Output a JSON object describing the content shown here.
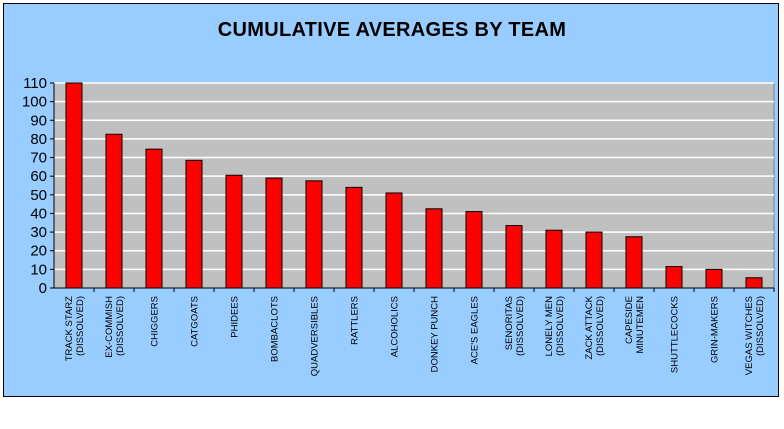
{
  "colors": {
    "background": "#99CCFF",
    "plot_area": "#C0C0C0",
    "bar": "#FF0000",
    "bar_outline": "#000000",
    "grid": "#FFFFFF"
  },
  "chart_data": {
    "type": "bar",
    "title": "CUMULATIVE AVERAGES BY TEAM",
    "xlabel": "",
    "ylabel": "",
    "ylim": [
      0,
      110
    ],
    "yticks": [
      0,
      10,
      20,
      30,
      40,
      50,
      60,
      70,
      80,
      90,
      100,
      110
    ],
    "grid": true,
    "legend": "none",
    "categories": [
      [
        "TRACK STARZ",
        "(DISSOLVED)"
      ],
      [
        "EX-COMMISH",
        "(DISSOLVED)"
      ],
      [
        "CHIGGERS"
      ],
      [
        "CATGOATS"
      ],
      [
        "PHIDEES"
      ],
      [
        "BOMBACLOTS"
      ],
      [
        "QUADVERSIBLES"
      ],
      [
        "RATTLERS"
      ],
      [
        "ALCOHOLICS"
      ],
      [
        "DONKEY PUNCH"
      ],
      [
        "ACE'S EAGLES"
      ],
      [
        "SENORITAS",
        "(DISSOLVED)"
      ],
      [
        "LONELY MEN",
        "(DISSOLVED)"
      ],
      [
        "ZACK ATTACK",
        "(DISSOLVED)"
      ],
      [
        "CAPESIDE",
        "MINUTEMEN"
      ],
      [
        "SHUTTLECOCKS"
      ],
      [
        "GRIN-MAKERS"
      ],
      [
        "VEGAS WITCHES",
        "(DISSOLVED)"
      ]
    ],
    "values": [
      110,
      82.5,
      74.5,
      68.5,
      60.5,
      59,
      57.5,
      54,
      51,
      42.5,
      41,
      33.5,
      31,
      30,
      27.5,
      11.5,
      10,
      5.5
    ]
  }
}
